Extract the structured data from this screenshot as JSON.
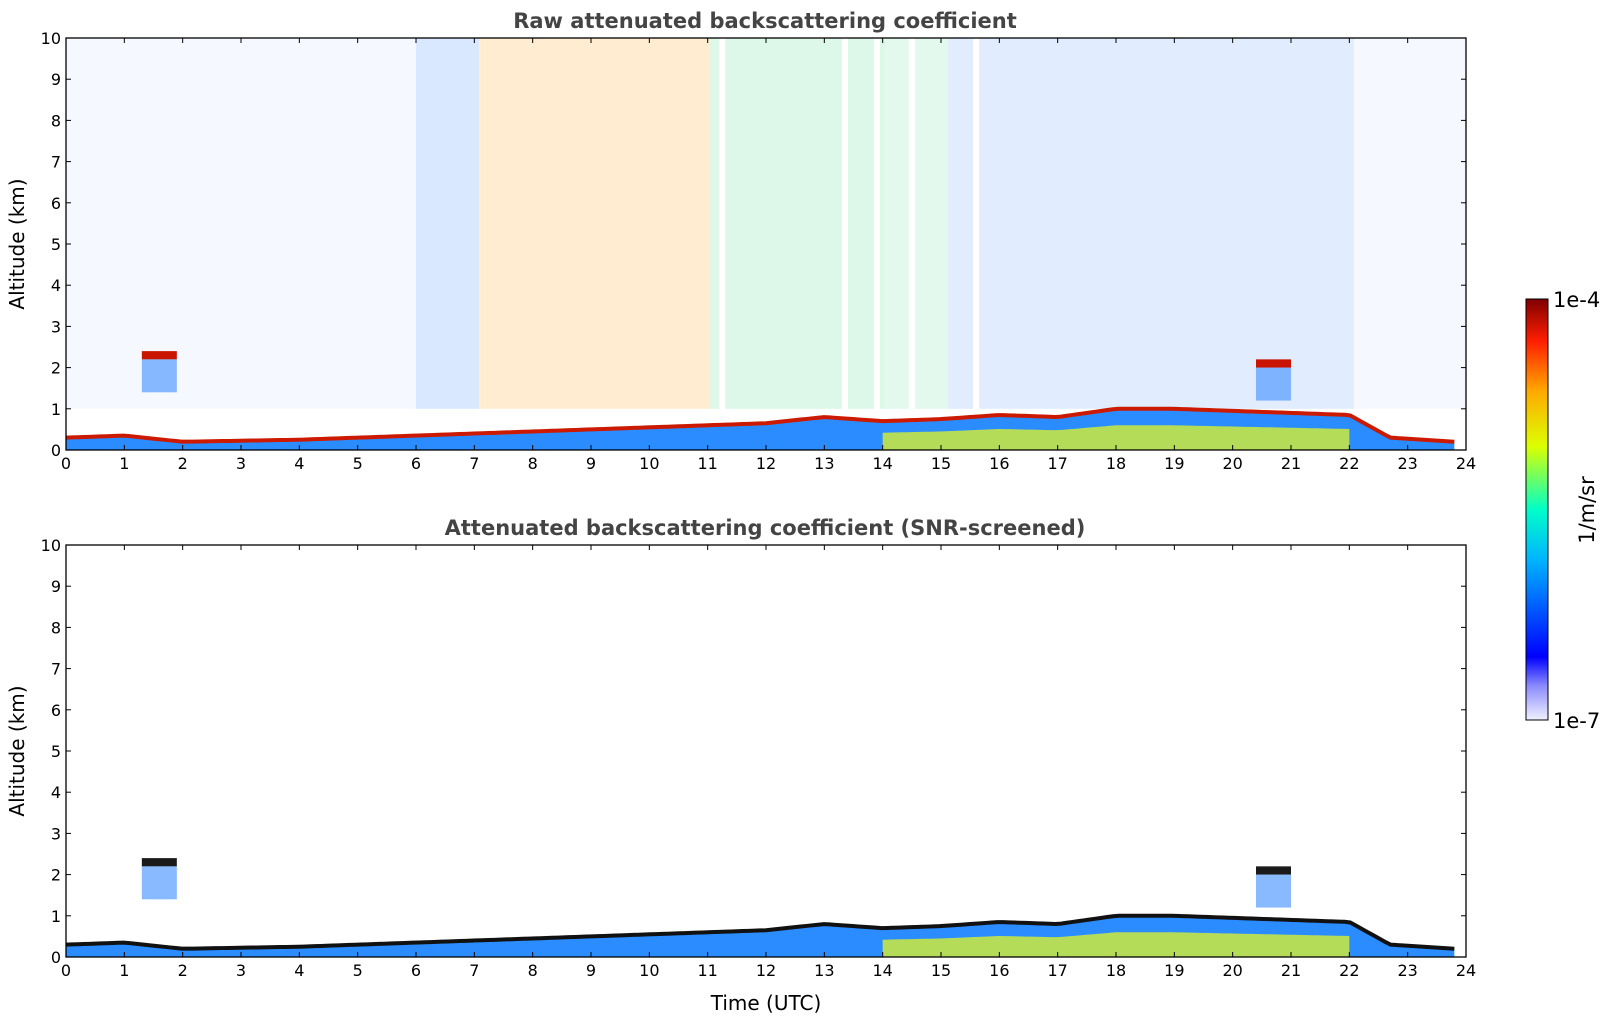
{
  "chart_data": [
    {
      "type": "heatmap",
      "title": "Raw attenuated backscattering coefficient",
      "xlabel": "",
      "ylabel": "Altitude (km)",
      "xlim": [
        0,
        24
      ],
      "ylim": [
        0,
        10
      ],
      "xticks": [
        0,
        1,
        2,
        3,
        4,
        5,
        6,
        7,
        8,
        9,
        10,
        11,
        12,
        13,
        14,
        15,
        16,
        17,
        18,
        19,
        20,
        21,
        22,
        23,
        24
      ],
      "yticks": [
        0,
        1,
        2,
        3,
        4,
        5,
        6,
        7,
        8,
        9,
        10
      ],
      "boundary_layer_top_km": [
        [
          0,
          0.3
        ],
        [
          1,
          0.35
        ],
        [
          2,
          0.2
        ],
        [
          4,
          0.25
        ],
        [
          6,
          0.35
        ],
        [
          8,
          0.45
        ],
        [
          10,
          0.55
        ],
        [
          11,
          0.6
        ],
        [
          12,
          0.65
        ],
        [
          13,
          0.8
        ],
        [
          14,
          0.7
        ],
        [
          15,
          0.75
        ],
        [
          16,
          0.85
        ],
        [
          17,
          0.8
        ],
        [
          18,
          1.0
        ],
        [
          19,
          1.0
        ],
        [
          20,
          0.95
        ],
        [
          21,
          0.9
        ],
        [
          22,
          0.85
        ],
        [
          22.7,
          0.3
        ],
        [
          23.8,
          0.2
        ]
      ],
      "cloud_layers": [
        {
          "x_start": 1.3,
          "x_end": 1.9,
          "altitude_km": 2.3
        },
        {
          "x_start": 20.4,
          "x_end": 21.0,
          "altitude_km": 2.1
        }
      ],
      "data_gaps_utc": [
        11.2,
        13.3,
        13.85,
        14.45,
        15.55
      ]
    },
    {
      "type": "heatmap",
      "title": "Attenuated backscattering coefficient (SNR-screened)",
      "xlabel": "Time (UTC)",
      "ylabel": "Altitude (km)",
      "xlim": [
        0,
        24
      ],
      "ylim": [
        0,
        10
      ],
      "xticks": [
        0,
        1,
        2,
        3,
        4,
        5,
        6,
        7,
        8,
        9,
        10,
        11,
        12,
        13,
        14,
        15,
        16,
        17,
        18,
        19,
        20,
        21,
        22,
        23,
        24
      ],
      "yticks": [
        0,
        1,
        2,
        3,
        4,
        5,
        6,
        7,
        8,
        9,
        10
      ],
      "boundary_layer_top_km": [
        [
          0,
          0.3
        ],
        [
          1,
          0.35
        ],
        [
          2,
          0.2
        ],
        [
          4,
          0.25
        ],
        [
          6,
          0.35
        ],
        [
          8,
          0.45
        ],
        [
          10,
          0.55
        ],
        [
          11,
          0.6
        ],
        [
          12,
          0.65
        ],
        [
          13,
          0.8
        ],
        [
          14,
          0.7
        ],
        [
          15,
          0.75
        ],
        [
          16,
          0.85
        ],
        [
          17,
          0.8
        ],
        [
          18,
          1.0
        ],
        [
          19,
          1.0
        ],
        [
          20,
          0.95
        ],
        [
          21,
          0.9
        ],
        [
          22,
          0.85
        ],
        [
          22.7,
          0.3
        ],
        [
          23.8,
          0.2
        ]
      ],
      "cloud_layers": [
        {
          "x_start": 1.3,
          "x_end": 1.9,
          "altitude_km": 2.3
        },
        {
          "x_start": 20.4,
          "x_end": 21.0,
          "altitude_km": 2.1
        }
      ]
    }
  ],
  "colorbar": {
    "label": "1/m/sr",
    "min_label": "1e-7",
    "max_label": "1e-4",
    "colormap": "jet",
    "colors": [
      "#ffffff",
      "#0000ff",
      "#00ffff",
      "#ffff00",
      "#ff0000",
      "#800000"
    ]
  }
}
